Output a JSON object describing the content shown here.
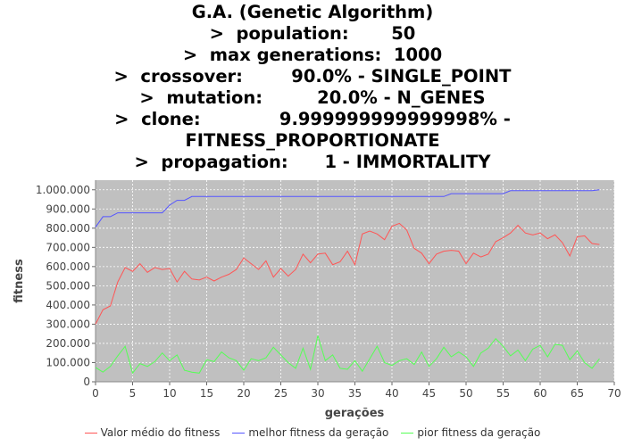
{
  "title_lines": [
    "G.A. (Genetic Algorithm)",
    ">  population:       50",
    ">  max generations:  1000",
    ">  crossover:        90.0% - SINGLE_POINT",
    ">  mutation:         20.0% - N_GENES",
    ">  clone:             9.999999999999998% -",
    "FITNESS_PROPORTIONATE",
    ">  propagation:      1 - IMMORTALITY"
  ],
  "chart_data": {
    "type": "line",
    "title": "G.A. (Genetic Algorithm)",
    "xlabel": "gerações",
    "ylabel": "fitness",
    "xlim": [
      0,
      70
    ],
    "ylim": [
      0,
      1050000
    ],
    "xticks": [
      0,
      5,
      10,
      15,
      20,
      25,
      30,
      35,
      40,
      45,
      50,
      55,
      60,
      65,
      70
    ],
    "yticks": [
      0,
      100000,
      200000,
      300000,
      400000,
      500000,
      600000,
      700000,
      800000,
      900000,
      1000000
    ],
    "ytick_labels": [
      "0",
      "100.000",
      "200.000",
      "300.000",
      "400.000",
      "500.000",
      "600.000",
      "700.000",
      "800.000",
      "900.000",
      "1.000.000"
    ],
    "grid": true,
    "legend_position": "bottom",
    "plot_background": "#c0c0c0",
    "series": [
      {
        "name": "Valor médio do fitness",
        "color": "#ff5555",
        "values": [
          300000,
          375000,
          395000,
          520000,
          595000,
          575000,
          615000,
          570000,
          595000,
          585000,
          590000,
          520000,
          575000,
          535000,
          530000,
          545000,
          525000,
          545000,
          560000,
          585000,
          645000,
          615000,
          585000,
          630000,
          545000,
          590000,
          550000,
          585000,
          665000,
          620000,
          665000,
          670000,
          610000,
          625000,
          680000,
          610000,
          770000,
          785000,
          770000,
          740000,
          810000,
          825000,
          790000,
          695000,
          670000,
          615000,
          665000,
          680000,
          685000,
          680000,
          615000,
          670000,
          650000,
          665000,
          730000,
          750000,
          775000,
          815000,
          775000,
          765000,
          775000,
          745000,
          765000,
          725000,
          655000,
          755000,
          760000,
          720000,
          715000
        ]
      },
      {
        "name": "melhor fitness da geração",
        "color": "#5555ff",
        "values": [
          805000,
          860000,
          860000,
          880000,
          880000,
          880000,
          880000,
          880000,
          880000,
          880000,
          920000,
          945000,
          945000,
          965000,
          965000,
          965000,
          965000,
          965000,
          965000,
          965000,
          965000,
          965000,
          965000,
          965000,
          965000,
          965000,
          965000,
          965000,
          965000,
          965000,
          965000,
          965000,
          965000,
          965000,
          965000,
          965000,
          965000,
          965000,
          965000,
          965000,
          965000,
          965000,
          965000,
          965000,
          965000,
          965000,
          965000,
          965000,
          980000,
          980000,
          980000,
          980000,
          980000,
          980000,
          980000,
          980000,
          995000,
          995000,
          995000,
          995000,
          995000,
          995000,
          995000,
          995000,
          995000,
          995000,
          995000,
          995000,
          1000000
        ]
      },
      {
        "name": "pior fitness da geração",
        "color": "#55ff55",
        "values": [
          75000,
          50000,
          80000,
          135000,
          185000,
          45000,
          95000,
          80000,
          105000,
          150000,
          110000,
          140000,
          60000,
          50000,
          45000,
          115000,
          105000,
          155000,
          125000,
          110000,
          60000,
          120000,
          110000,
          125000,
          180000,
          140000,
          100000,
          70000,
          175000,
          65000,
          240000,
          110000,
          140000,
          70000,
          65000,
          110000,
          55000,
          120000,
          185000,
          100000,
          85000,
          110000,
          120000,
          90000,
          155000,
          80000,
          120000,
          180000,
          130000,
          155000,
          130000,
          80000,
          150000,
          175000,
          225000,
          185000,
          135000,
          165000,
          110000,
          170000,
          190000,
          130000,
          195000,
          190000,
          115000,
          160000,
          100000,
          70000,
          120000
        ]
      }
    ]
  }
}
